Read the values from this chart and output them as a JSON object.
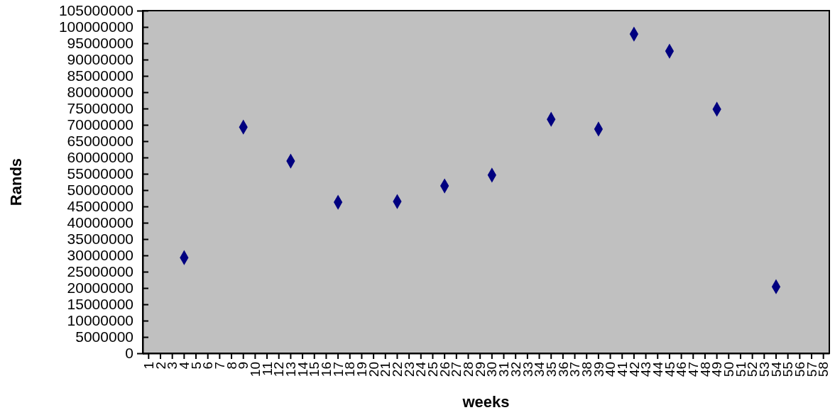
{
  "chart_data": {
    "type": "scatter",
    "xlabel": "weeks",
    "ylabel": "Rands",
    "categories": [
      "1",
      "2",
      "3",
      "4",
      "5",
      "6",
      "7",
      "8",
      "9",
      "10",
      "11",
      "12",
      "13",
      "14",
      "15",
      "16",
      "17",
      "18",
      "19",
      "20",
      "21",
      "22",
      "23",
      "24",
      "25",
      "26",
      "27",
      "28",
      "29",
      "30",
      "31",
      "32",
      "33",
      "34",
      "35",
      "36",
      "37",
      "38",
      "39",
      "40",
      "41",
      "42",
      "43",
      "44",
      "45",
      "46",
      "47",
      "48",
      "49",
      "50",
      "51",
      "52",
      "53",
      "54",
      "55",
      "56",
      "57",
      "58"
    ],
    "series": [
      {
        "color": "#000080",
        "values": [
          null,
          null,
          null,
          29300000,
          null,
          null,
          null,
          null,
          69300000,
          null,
          null,
          null,
          58900000,
          null,
          null,
          null,
          46300000,
          null,
          null,
          null,
          null,
          46500000,
          null,
          null,
          null,
          51300000,
          null,
          null,
          null,
          54600000,
          null,
          null,
          null,
          null,
          71700000,
          null,
          null,
          null,
          68700000,
          null,
          null,
          97800000,
          null,
          null,
          92600000,
          null,
          null,
          null,
          74800000,
          null,
          null,
          null,
          null,
          20400000,
          null,
          null,
          null,
          null
        ]
      }
    ],
    "ylim": [
      0,
      105000000
    ],
    "yticks": [
      0,
      5000000,
      10000000,
      15000000,
      20000000,
      25000000,
      30000000,
      35000000,
      40000000,
      45000000,
      50000000,
      55000000,
      60000000,
      65000000,
      70000000,
      75000000,
      80000000,
      85000000,
      90000000,
      95000000,
      100000000,
      105000000
    ],
    "marker": "diamond",
    "grid": false
  }
}
